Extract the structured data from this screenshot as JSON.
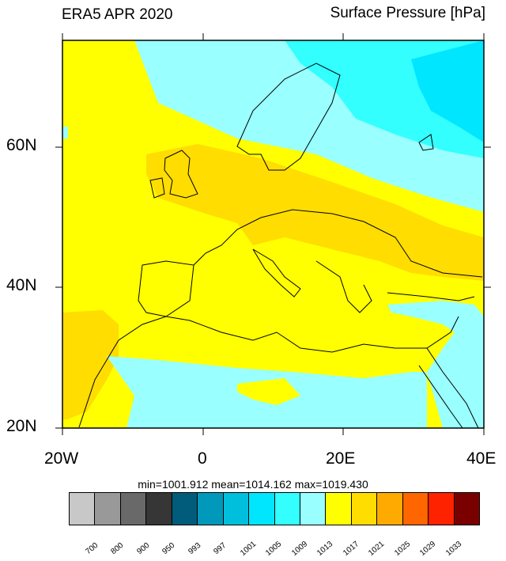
{
  "title_left": "ERA5 APR 2020",
  "title_right": "Surface Pressure [hPa]",
  "lat_labels": [
    "60N",
    "40N",
    "20N"
  ],
  "lon_labels": [
    "20W",
    "0",
    "20E",
    "40E"
  ],
  "stats": "min=1001.912  mean=1014.162  max=1019.430",
  "colorbar": {
    "colors": [
      "#c8c8c8",
      "#999999",
      "#696969",
      "#363636",
      "#005c7a",
      "#0099bb",
      "#00bfdd",
      "#00e6ff",
      "#33ffff",
      "#99ffff",
      "#ffff00",
      "#ffdd00",
      "#ffaa00",
      "#ff6600",
      "#ff2200",
      "#7a0000"
    ],
    "labels": [
      "700",
      "800",
      "900",
      "950",
      "993",
      "997",
      "1001",
      "1005",
      "1009",
      "1013",
      "1017",
      "1021",
      "1025",
      "1029",
      "1033"
    ]
  },
  "map_colors": {
    "yellow": "#ffff00",
    "gold": "#ffdd00",
    "light_cyan": "#99ffff",
    "cyan": "#33ffff",
    "aqua": "#00e6ff"
  }
}
